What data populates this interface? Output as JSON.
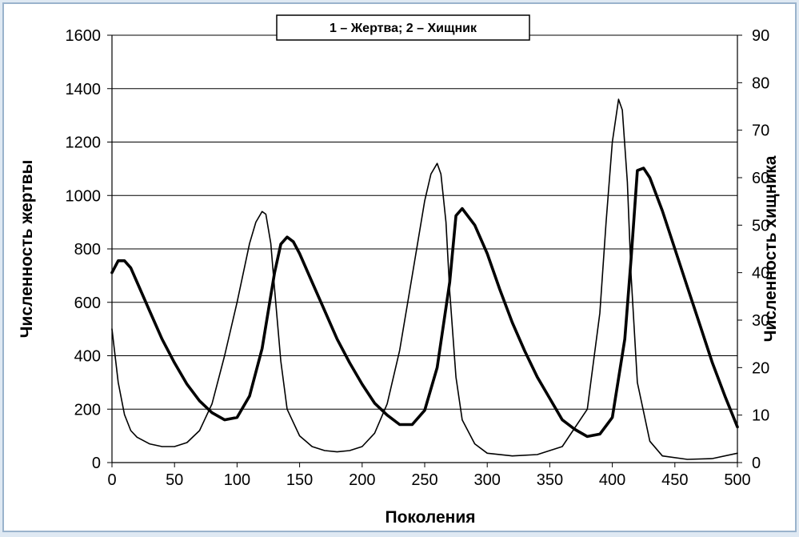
{
  "chart_data": {
    "type": "line",
    "legend_text": "1 – Жертва; 2 – Хищник",
    "xlabel": "Поколения",
    "ylabel_left": "Численность жертвы",
    "ylabel_right": "Численность хищника",
    "xlim": [
      0,
      500
    ],
    "ylim_left": [
      0,
      1600
    ],
    "ylim_right": [
      0,
      90
    ],
    "xticks": [
      0,
      50,
      100,
      150,
      200,
      250,
      300,
      350,
      400,
      450,
      500
    ],
    "yticks_left": [
      0,
      200,
      400,
      600,
      800,
      1000,
      1200,
      1400,
      1600
    ],
    "yticks_right": [
      0,
      10,
      20,
      30,
      40,
      50,
      60,
      70,
      80,
      90
    ],
    "grid": "horizontal",
    "legend_position": "top-center",
    "series": [
      {
        "axis": "left",
        "stroke": "thin",
        "x": [
          0,
          5,
          10,
          15,
          20,
          30,
          40,
          50,
          60,
          70,
          80,
          90,
          100,
          110,
          115,
          120,
          123,
          127,
          130,
          135,
          140,
          150,
          160,
          170,
          180,
          190,
          200,
          210,
          220,
          230,
          240,
          250,
          255,
          260,
          263,
          267,
          270,
          275,
          280,
          290,
          300,
          320,
          340,
          360,
          380,
          390,
          395,
          400,
          405,
          408,
          412,
          415,
          420,
          430,
          440,
          460,
          480,
          500
        ],
        "y": [
          500,
          300,
          180,
          120,
          95,
          70,
          60,
          60,
          75,
          120,
          220,
          400,
          600,
          820,
          900,
          940,
          930,
          820,
          650,
          380,
          200,
          100,
          60,
          45,
          40,
          45,
          60,
          110,
          220,
          420,
          700,
          980,
          1080,
          1120,
          1080,
          900,
          640,
          320,
          160,
          70,
          35,
          25,
          30,
          60,
          200,
          560,
          900,
          1200,
          1360,
          1320,
          1050,
          700,
          300,
          80,
          25,
          12,
          15,
          35
        ]
      },
      {
        "axis": "right",
        "stroke": "thick",
        "x": [
          0,
          5,
          10,
          15,
          20,
          30,
          40,
          50,
          60,
          70,
          80,
          90,
          100,
          110,
          120,
          130,
          135,
          140,
          145,
          150,
          160,
          170,
          180,
          190,
          200,
          210,
          220,
          230,
          240,
          250,
          260,
          270,
          275,
          280,
          290,
          300,
          310,
          320,
          330,
          340,
          350,
          360,
          370,
          380,
          390,
          400,
          410,
          415,
          420,
          425,
          430,
          440,
          450,
          460,
          470,
          480,
          490,
          500
        ],
        "y": [
          40,
          42.5,
          42.5,
          41,
          38,
          32,
          26,
          21,
          16.5,
          13,
          10.5,
          9,
          9.5,
          14,
          24,
          40,
          46,
          47.5,
          46.5,
          44,
          38,
          32,
          26,
          21,
          16.5,
          12.5,
          10,
          8,
          8,
          11,
          20,
          38,
          52,
          53.5,
          50,
          44,
          36.5,
          29.5,
          23.5,
          18,
          13.5,
          9,
          7,
          5.5,
          6,
          9.5,
          26,
          43,
          61.5,
          62,
          60,
          53,
          45,
          37,
          29,
          21,
          14,
          7.5
        ]
      }
    ]
  }
}
